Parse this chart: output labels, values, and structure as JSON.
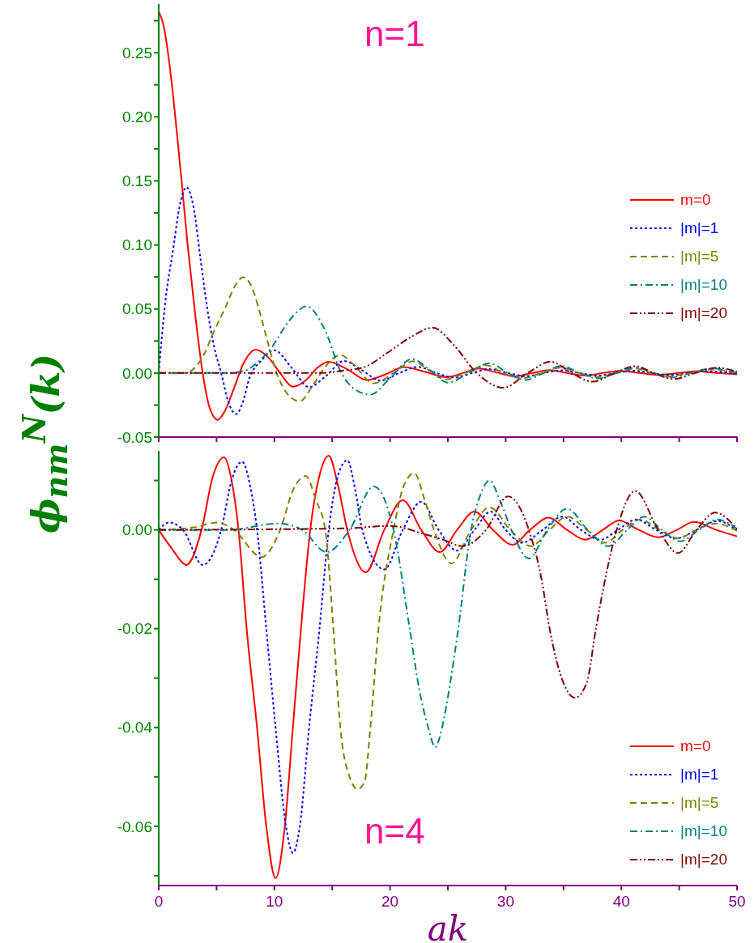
{
  "chart_data": [
    {
      "type": "line",
      "ylabel": "ϕ$_{nm}$$^{N}$(k)",
      "annotations": [
        "n=1"
      ],
      "legend": "right",
      "tick_labels": "y",
      "xlim": [
        0,
        50
      ],
      "ylim": [
        -0.05,
        0.288
      ],
      "xticks": [
        {
          "value": 0,
          "label": null
        },
        {
          "value": 5,
          "label": null
        },
        {
          "value": 10,
          "label": null
        },
        {
          "value": 15,
          "label": null
        },
        {
          "value": 20,
          "label": null
        },
        {
          "value": 25,
          "label": null
        },
        {
          "value": 30,
          "label": null
        },
        {
          "value": 35,
          "label": null
        },
        {
          "value": 40,
          "label": null
        },
        {
          "value": 45,
          "label": null
        },
        {
          "value": 50,
          "label": null
        }
      ],
      "yticks": [
        {
          "value": -0.05,
          "label": "-0.05"
        },
        {
          "value": -0.025,
          "label": null
        },
        {
          "value": 0,
          "label": "0.00"
        },
        {
          "value": 0.025,
          "label": null
        },
        {
          "value": 0.05,
          "label": "0.05"
        },
        {
          "value": 0.075,
          "label": null
        },
        {
          "value": 0.1,
          "label": "0.10"
        },
        {
          "value": 0.125,
          "label": null
        },
        {
          "value": 0.15,
          "label": "0.15"
        },
        {
          "value": 0.175,
          "label": null
        },
        {
          "value": 0.2,
          "label": "0.20"
        },
        {
          "value": 0.225,
          "label": null
        },
        {
          "value": 0.25,
          "label": "0.25"
        },
        {
          "value": 0.275,
          "label": null
        }
      ],
      "series": [
        {
          "name": "m=0",
          "color": "#ff0000",
          "line_style": "solid",
          "x": [
            0,
            0.4,
            0.8,
            1.2,
            1.6,
            1.8,
            2.03,
            2.5,
            3.1,
            3.8,
            4.4,
            5.1,
            5.7,
            6.5,
            7.3,
            8.4,
            9.5,
            10.5,
            11.6,
            12.8,
            13.7,
            14.7,
            16.3,
            18.0,
            19.6,
            21.2,
            23.0,
            24.9,
            26.3,
            27.7,
            29.2,
            30.8,
            32.3,
            33.8,
            35.3,
            36.9,
            38.4,
            39.9,
            41.6,
            43.3,
            44.9,
            46.5,
            48.3,
            50
          ],
          "values": [
            0.282,
            0.272,
            0.25,
            0.22,
            0.185,
            0.166,
            0.145,
            0.1,
            0.05,
            0,
            -0.027,
            -0.0365,
            -0.03,
            -0.012,
            0.007,
            0.0183,
            0.012,
            0,
            -0.0107,
            -0.005,
            0.004,
            0.0088,
            0.003,
            -0.0055,
            -0.001,
            0.0047,
            0.001,
            -0.0032,
            0,
            0.0035,
            0.0005,
            -0.0025,
            0,
            0.0023,
            0,
            -0.0019,
            0,
            0.0017,
            0,
            -0.0015,
            0,
            0.0014,
            0,
            -0.001
          ]
        },
        {
          "name": "|m|=1",
          "color": "#0000ff",
          "line_style": "dotted",
          "x": [
            0,
            0.5,
            1.3,
            1.8,
            2.4,
            3.0,
            3.6,
            4.2,
            4.8,
            5.4,
            6.0,
            6.7,
            7.3,
            7.8,
            8.9,
            10.0,
            11.5,
            13.0,
            14.5,
            16.0,
            17.6,
            19.2,
            20.8,
            22.4,
            24.0,
            25.6,
            27.1,
            28.6,
            30.2,
            31.8,
            33.3,
            34.9,
            36.4,
            38.0,
            39.5,
            41.1,
            42.6,
            44.2,
            45.8,
            47.3,
            50
          ],
          "values": [
            0,
            0.05,
            0.1,
            0.13,
            0.145,
            0.13,
            0.09,
            0.05,
            0.02,
            0,
            -0.022,
            -0.032,
            -0.022,
            -0.005,
            0.01,
            0.0178,
            0.004,
            -0.011,
            -0.002,
            0.0094,
            0.002,
            -0.006,
            0,
            0.0048,
            0,
            -0.0035,
            0,
            0.003,
            0,
            -0.0025,
            0,
            0.0022,
            0,
            -0.002,
            0,
            0.0018,
            0,
            -0.0015,
            0,
            0.0014,
            -0.0002
          ]
        },
        {
          "name": "|m|=5",
          "color": "#808000",
          "line_style": "dashed",
          "x": [
            0,
            2.3,
            3.2,
            4.0,
            4.65,
            5.8,
            6.6,
            7.3,
            8.0,
            8.66,
            9.4,
            10.2,
            11.2,
            12.2,
            13.3,
            14.5,
            15.7,
            16.8,
            18.6,
            20.3,
            22.0,
            23.4,
            24.8,
            26.5,
            28.3,
            29.8,
            31.4,
            33.1,
            34.8,
            36.3,
            37.8,
            39.5,
            41.2,
            42.6,
            44.0,
            45.9,
            47.7,
            50
          ],
          "values": [
            0,
            0,
            0.005,
            0.016,
            0.03,
            0.052,
            0.068,
            0.0748,
            0.068,
            0.05,
            0.025,
            0,
            -0.017,
            -0.022,
            -0.01,
            0.006,
            0.0142,
            0.007,
            -0.008,
            0,
            0.0092,
            0.002,
            -0.005,
            0,
            0.006,
            0,
            -0.0041,
            0,
            0.0044,
            0,
            -0.0032,
            0,
            0.0035,
            0,
            -0.0027,
            0,
            0.0029,
            0.0005
          ]
        },
        {
          "name": "|m|=10",
          "color": "#008080",
          "line_style": "dashdot",
          "x": [
            0,
            6,
            7.5,
            8.5,
            9.8,
            11.2,
            12.8,
            14.3,
            15.8,
            17,
            18.3,
            20.1,
            21.9,
            23.5,
            25.0,
            26.8,
            28.6,
            30.2,
            31.7,
            33.3,
            34.8,
            36.4,
            38.0,
            39.6,
            41.3,
            42.8,
            44.3,
            46,
            47.8,
            50
          ],
          "values": [
            0,
            0,
            0.002,
            0.008,
            0.0205,
            0.04,
            0.052,
            0.035,
            0,
            -0.013,
            -0.0168,
            -0.003,
            0.011,
            0.002,
            -0.0075,
            0,
            0.0076,
            0,
            -0.0054,
            0,
            0.0056,
            0,
            -0.0042,
            0,
            0.0043,
            0,
            -0.0034,
            0,
            0.0036,
            0
          ]
        },
        {
          "name": "|m|=20",
          "color": "#800000",
          "line_style": "dashdotdot",
          "x": [
            0,
            14,
            16,
            17.8,
            19.8,
            21.8,
            23.7,
            25.5,
            27.5,
            29.8,
            31.9,
            33.9,
            35.7,
            37.5,
            39.4,
            41.2,
            42.8,
            44.5,
            46.4,
            48.3,
            50
          ],
          "values": [
            0,
            0,
            0.002,
            0.0047,
            0.016,
            0.028,
            0.0354,
            0.022,
            0,
            -0.0115,
            0,
            0.0089,
            0,
            -0.0068,
            0,
            0.0054,
            0,
            -0.0047,
            0,
            0.0042,
            0.001
          ]
        }
      ]
    },
    {
      "type": "line",
      "xlabel": "ak",
      "annotations": [
        "n=4"
      ],
      "legend": "bottom right",
      "xlim": [
        0,
        50
      ],
      "ylim": [
        -0.072,
        0.016
      ],
      "xticks": [
        0,
        {
          "value": 5,
          "label": null
        },
        10,
        {
          "value": 15,
          "label": null
        },
        20,
        {
          "value": 25,
          "label": null
        },
        30,
        {
          "value": 35,
          "label": null
        },
        40,
        {
          "value": 45,
          "label": null
        },
        50
      ],
      "yticks": [
        {
          "value": -0.07,
          "label": null
        },
        {
          "value": -0.06,
          "label": "-0.06"
        },
        {
          "value": -0.05,
          "label": null
        },
        {
          "value": -0.04,
          "label": "-0.04"
        },
        {
          "value": -0.03,
          "label": null
        },
        {
          "value": -0.02,
          "label": "-0.02"
        },
        {
          "value": -0.01,
          "label": null
        },
        {
          "value": 0,
          "label": "0.00"
        },
        {
          "value": 0.01,
          "label": null
        }
      ],
      "series": [
        {
          "name": "m=0",
          "color": "#ff0000",
          "line_style": "solid",
          "x": [
            0,
            1.2,
            2.4,
            3.7,
            4.7,
            5.65,
            6.3,
            6.9,
            7.6,
            8.5,
            9.3,
            10.1,
            10.9,
            11.6,
            12.3,
            13.1,
            13.9,
            14.7,
            15.5,
            16.3,
            17.9,
            19.5,
            21.1,
            22.7,
            24.3,
            25.8,
            27.3,
            28.9,
            30.6,
            32.1,
            33.7,
            35.3,
            36.9,
            38.4,
            39.8,
            41.5,
            43.2,
            44.8,
            46.3,
            48.2,
            50
          ],
          "values": [
            0,
            -0.004,
            -0.0071,
            0,
            0.011,
            0.0147,
            0.01,
            0,
            -0.02,
            -0.04,
            -0.06,
            -0.0705,
            -0.06,
            -0.04,
            -0.02,
            0,
            0.011,
            0.015,
            0.009,
            0,
            -0.0086,
            0,
            0.006,
            0,
            -0.0045,
            0,
            0.0037,
            0,
            -0.003,
            0,
            0.0025,
            0,
            -0.002,
            0,
            0.0019,
            0,
            -0.0015,
            0,
            0.0016,
            0,
            -0.0013
          ]
        },
        {
          "name": "|m|=1",
          "color": "#0000ff",
          "line_style": "dotted",
          "x": [
            0,
            0.9,
            2.1,
            3.8,
            5.4,
            6.3,
            7.2,
            7.9,
            8.5,
            9.3,
            10.1,
            11.0,
            11.6,
            12.2,
            13.0,
            13.9,
            14.7,
            15.5,
            16.3,
            17.0,
            17.6,
            19.5,
            21.1,
            22.7,
            24.2,
            25.8,
            27.3,
            28.7,
            30.0,
            31.4,
            33.2,
            34.9,
            36.5,
            38.2,
            39.7,
            41.3,
            43.0,
            44.8,
            46.5,
            48.3,
            50
          ],
          "values": [
            0,
            0.0015,
            0,
            -0.0071,
            0,
            0.01,
            0.0138,
            0.009,
            0,
            -0.02,
            -0.04,
            -0.06,
            -0.0654,
            -0.06,
            -0.04,
            -0.02,
            0,
            0.011,
            0.0141,
            0.008,
            0,
            -0.008,
            0,
            0.0057,
            0,
            -0.0042,
            0,
            0.0037,
            0,
            -0.0026,
            0,
            0.0027,
            0,
            -0.002,
            0,
            0.0021,
            0,
            -0.0017,
            0,
            0.0018,
            -0.0001
          ]
        },
        {
          "name": "|m|=5",
          "color": "#808000",
          "line_style": "dashed",
          "x": [
            0,
            3,
            5.1,
            6.5,
            8.9,
            10.5,
            11.6,
            12.7,
            13.6,
            14.4,
            15.1,
            15.7,
            16.5,
            17.2,
            17.8,
            18.3,
            19.0,
            20.3,
            21.2,
            22.1,
            23.0,
            23.8,
            25.3,
            27.0,
            28.6,
            30.4,
            32.2,
            33.8,
            35.3,
            37.0,
            38.6,
            40.1,
            41.6,
            43.3,
            44.9,
            46.5,
            48.1,
            50
          ],
          "values": [
            0,
            0.0005,
            0.0015,
            0,
            -0.0055,
            0,
            0.008,
            0.0109,
            0.006,
            0,
            -0.02,
            -0.04,
            -0.05,
            -0.0525,
            -0.051,
            -0.04,
            -0.02,
            0,
            0.009,
            0.0115,
            0.006,
            0,
            -0.0068,
            0,
            0.0046,
            0,
            -0.0033,
            0,
            0.0027,
            0,
            -0.0026,
            0,
            0.0021,
            0,
            -0.0017,
            0,
            0.0013,
            -0.0002
          ]
        },
        {
          "name": "|m|=10",
          "color": "#008080",
          "line_style": "dashdot",
          "x": [
            0,
            6,
            10.3,
            12.4,
            14.5,
            16.5,
            18.6,
            20.3,
            21.7,
            22.5,
            23.3,
            23.9,
            24.5,
            25.2,
            25.9,
            27.0,
            27.8,
            28.6,
            29.5,
            30.5,
            32.0,
            33.6,
            35.3,
            37.1,
            38.9,
            40.5,
            42.0,
            43.5,
            45.1,
            46.7,
            48.3,
            50
          ],
          "values": [
            0,
            0,
            0.0013,
            0,
            -0.0045,
            0,
            0.0088,
            0,
            -0.02,
            -0.032,
            -0.04,
            -0.044,
            -0.04,
            -0.031,
            -0.02,
            0,
            0.007,
            0.01,
            0.006,
            0,
            -0.0058,
            0,
            0.0043,
            0,
            -0.0033,
            0,
            0.0027,
            0,
            -0.0023,
            0,
            0.0021,
            0.0002
          ]
        },
        {
          "name": "|m|=20",
          "color": "#800000",
          "line_style": "dashdotdot",
          "x": [
            0,
            16,
            20,
            22.9,
            24.6,
            26.3,
            28.3,
            30.2,
            32,
            33.1,
            33.8,
            35,
            36,
            37,
            37.8,
            38.6,
            39.6,
            41.2,
            43.2,
            44.9,
            46.5,
            48.1,
            50
          ],
          "values": [
            0,
            0.0003,
            0.0008,
            -0.0008,
            -0.002,
            -0.0033,
            0,
            0.0068,
            0,
            -0.01,
            -0.02,
            -0.031,
            -0.034,
            -0.031,
            -0.02,
            -0.01,
            0,
            0.0079,
            0,
            -0.0047,
            0,
            0.0035,
            0.0002
          ]
        }
      ]
    }
  ]
}
